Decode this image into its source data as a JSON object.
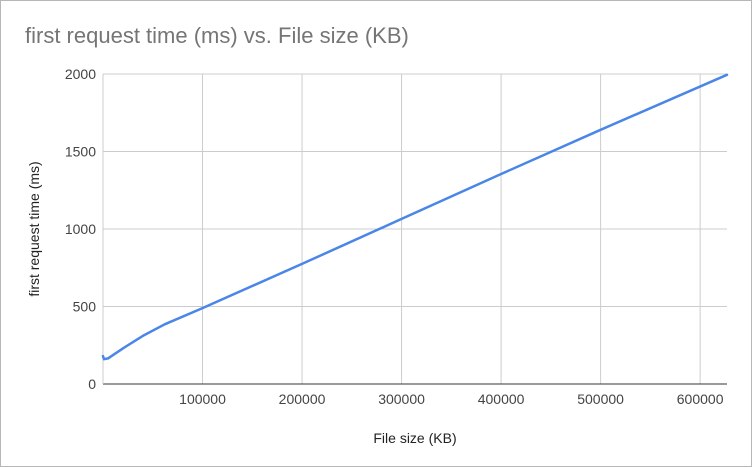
{
  "chart_data": {
    "type": "line",
    "title": "first request time (ms) vs. File size (KB)",
    "xlabel": "File size (KB)",
    "ylabel": "first request time (ms)",
    "xlim": [
      0,
      627000
    ],
    "ylim": [
      0,
      2000
    ],
    "x_ticks": [
      "100000",
      "200000",
      "300000",
      "400000",
      "500000",
      "600000"
    ],
    "y_ticks": [
      "0",
      "500",
      "1000",
      "1500",
      "2000"
    ],
    "grid": true,
    "legend": "none",
    "series": [
      {
        "color": "#4a86e8",
        "x": [
          0,
          1000,
          5000,
          20000,
          40000,
          62000,
          100000,
          200000,
          300000,
          400000,
          500000,
          627000
        ],
        "y": [
          180,
          160,
          165,
          230,
          310,
          385,
          490,
          775,
          1065,
          1355,
          1640,
          1995
        ]
      }
    ]
  }
}
